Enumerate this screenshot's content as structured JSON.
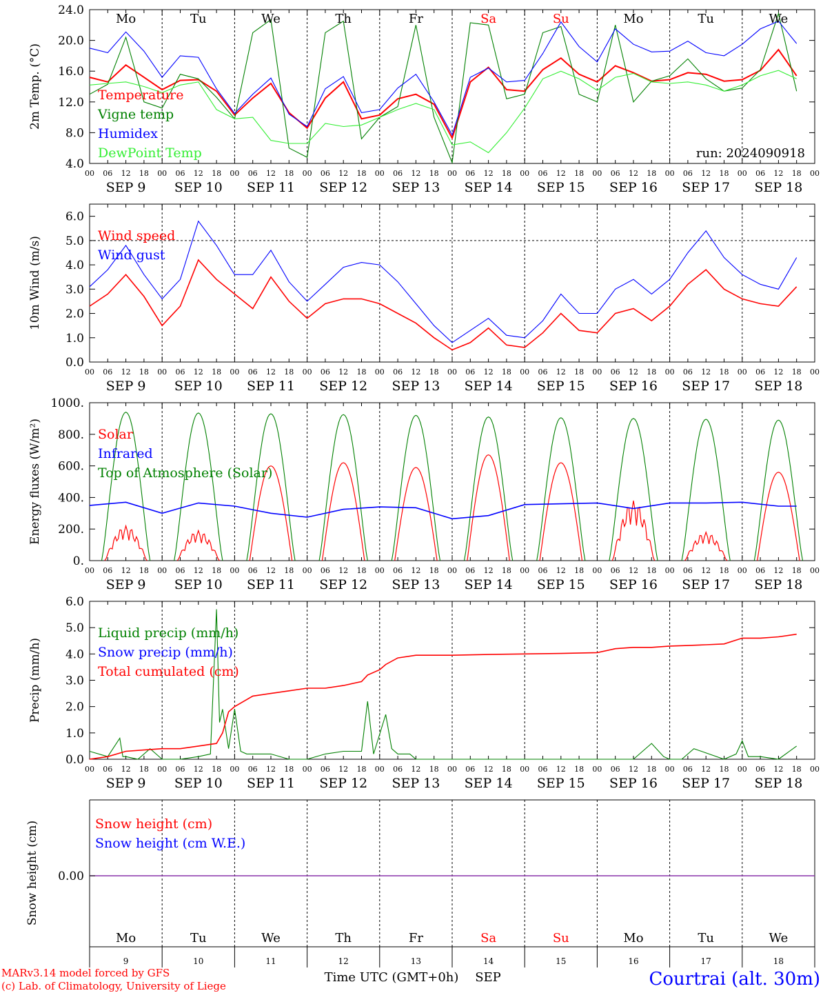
{
  "colors": {
    "red": "#ff0000",
    "green": "#008000",
    "blue": "#0000ff",
    "lightgreen": "#33ee33",
    "purple": "#8833aa",
    "axis": "#000000"
  },
  "hour_labels": [
    "00",
    "06",
    "12",
    "18"
  ],
  "date_labels": [
    "SEP  9",
    "SEP 10",
    "SEP 11",
    "SEP 12",
    "SEP 13",
    "SEP 14",
    "SEP 15",
    "SEP 16",
    "SEP 17",
    "SEP 18"
  ],
  "weekday_labels": [
    {
      "label": "Mo",
      "weekend": false
    },
    {
      "label": "Tu",
      "weekend": false
    },
    {
      "label": "We",
      "weekend": false
    },
    {
      "label": "Th",
      "weekend": false
    },
    {
      "label": "Fr",
      "weekend": false
    },
    {
      "label": "Sa",
      "weekend": true
    },
    {
      "label": "Su",
      "weekend": true
    },
    {
      "label": "Mo",
      "weekend": false
    },
    {
      "label": "Tu",
      "weekend": false
    },
    {
      "label": "We",
      "weekend": false
    }
  ],
  "day_numbers": [
    "9",
    "10",
    "11",
    "12",
    "13",
    "14",
    "15",
    "16",
    "17",
    "18"
  ],
  "run_label": "run: 2024090918",
  "footer": {
    "credit_line1": "MARv3.14 model forced by GFS",
    "credit_line2": "(c) Lab. of Climatology, University of Liege",
    "xlabel": "Time UTC (GMT+0h)",
    "month": "SEP",
    "station": "Courtrai (alt. 30m)"
  },
  "chart_data": [
    {
      "type": "line",
      "ylabel": "2m Temp. (°C)",
      "ylim": [
        4,
        24
      ],
      "yticks": [
        "4.0",
        "8.0",
        "12.0",
        "16.0",
        "20.0",
        "24.0"
      ],
      "x_unit": "hours since SEP 9 00 UTC",
      "series": [
        {
          "name": "Temperature",
          "color": "red",
          "x": [
            0,
            6,
            12,
            18,
            24,
            30,
            36,
            42,
            48,
            54,
            60,
            66,
            72,
            78,
            84,
            90,
            96,
            102,
            108,
            114,
            120,
            126,
            132,
            138,
            144,
            150,
            156,
            162,
            168,
            174,
            180,
            186,
            192,
            198,
            204,
            210,
            216,
            222,
            228,
            234
          ],
          "values": [
            15.2,
            14.6,
            16.8,
            15.2,
            13.6,
            14.8,
            14.9,
            13.4,
            10.3,
            12.5,
            14.4,
            10.6,
            8.6,
            12.5,
            14.6,
            9.8,
            10.3,
            12.4,
            13.0,
            11.7,
            7.3,
            14.6,
            16.5,
            13.6,
            13.4,
            16.2,
            17.7,
            15.6,
            14.6,
            16.7,
            15.8,
            14.7,
            14.9,
            15.8,
            15.6,
            14.7,
            14.9,
            16.1,
            18.8,
            15.4
          ]
        },
        {
          "name": "Vigne temp",
          "color": "green",
          "x": [
            0,
            6,
            12,
            18,
            24,
            30,
            36,
            42,
            48,
            54,
            60,
            66,
            72,
            78,
            84,
            90,
            96,
            102,
            108,
            114,
            120,
            126,
            132,
            138,
            144,
            150,
            156,
            162,
            168,
            174,
            180,
            186,
            192,
            198,
            204,
            210,
            216,
            222,
            228,
            234
          ],
          "values": [
            13.0,
            14.3,
            20.4,
            12.0,
            11.2,
            15.6,
            15.0,
            12.6,
            9.8,
            21.0,
            22.7,
            6.0,
            4.8,
            21.0,
            22.5,
            7.2,
            10.0,
            11.4,
            22.0,
            10.0,
            4.1,
            22.3,
            22.0,
            12.4,
            13.0,
            21.0,
            21.8,
            13.0,
            12.0,
            22.0,
            12.0,
            14.7,
            15.4,
            17.6,
            15.0,
            13.4,
            13.8,
            16.2,
            23.5,
            13.4
          ]
        },
        {
          "name": "Humidex",
          "color": "blue",
          "x": [
            0,
            6,
            12,
            18,
            24,
            30,
            36,
            42,
            48,
            54,
            60,
            66,
            72,
            78,
            84,
            90,
            96,
            102,
            108,
            114,
            120,
            126,
            132,
            138,
            144,
            150,
            156,
            162,
            168,
            174,
            180,
            186,
            192,
            198,
            204,
            210,
            216,
            222,
            228,
            234
          ],
          "values": [
            19.0,
            18.4,
            21.1,
            18.6,
            15.2,
            18.0,
            17.8,
            13.7,
            10.5,
            13.0,
            15.1,
            10.4,
            8.8,
            13.7,
            15.3,
            10.6,
            11.0,
            13.8,
            15.6,
            12.0,
            7.7,
            15.2,
            16.4,
            14.6,
            14.8,
            18.3,
            22.4,
            19.2,
            17.2,
            21.5,
            19.5,
            18.5,
            18.6,
            19.9,
            18.4,
            18.0,
            19.5,
            21.5,
            22.5,
            19.6
          ]
        },
        {
          "name": "DewPoint Temp",
          "color": "lightgreen",
          "x": [
            0,
            6,
            12,
            18,
            24,
            30,
            36,
            42,
            48,
            54,
            60,
            66,
            72,
            78,
            84,
            90,
            96,
            102,
            108,
            114,
            120,
            126,
            132,
            138,
            144,
            150,
            156,
            162,
            168,
            174,
            180,
            186,
            192,
            198,
            204,
            210,
            216,
            222,
            228,
            234
          ],
          "values": [
            14.2,
            14.4,
            14.6,
            14.0,
            13.2,
            14.2,
            14.6,
            11.0,
            9.8,
            10.0,
            7.0,
            6.6,
            6.6,
            9.2,
            8.8,
            9.0,
            10.0,
            11.0,
            11.8,
            11.0,
            6.4,
            6.8,
            5.4,
            8.0,
            11.2,
            15.0,
            16.0,
            15.0,
            13.5,
            15.2,
            15.7,
            14.6,
            14.4,
            14.6,
            14.2,
            13.4,
            14.2,
            15.4,
            16.1,
            15.0
          ]
        }
      ],
      "legend": [
        "Temperature",
        "Vigne temp",
        "Humidex",
        "DewPoint Temp"
      ]
    },
    {
      "type": "line",
      "ylabel": "10m Wind (m/s)",
      "ylim": [
        0,
        6.5
      ],
      "yticks": [
        "0.0",
        "1.0",
        "2.0",
        "3.0",
        "4.0",
        "5.0",
        "6.0"
      ],
      "hline": 5.0,
      "series": [
        {
          "name": "Wind speed",
          "color": "red",
          "x": [
            0,
            6,
            12,
            18,
            24,
            30,
            36,
            42,
            48,
            54,
            60,
            66,
            72,
            78,
            84,
            90,
            96,
            102,
            108,
            114,
            120,
            126,
            132,
            138,
            144,
            150,
            156,
            162,
            168,
            174,
            180,
            186,
            192,
            198,
            204,
            210,
            216,
            222,
            228,
            234
          ],
          "values": [
            2.3,
            2.8,
            3.6,
            2.7,
            1.5,
            2.3,
            4.2,
            3.4,
            2.8,
            2.2,
            3.5,
            2.5,
            1.8,
            2.4,
            2.6,
            2.6,
            2.4,
            2.0,
            1.6,
            1.0,
            0.5,
            0.8,
            1.4,
            0.7,
            0.6,
            1.2,
            2.0,
            1.3,
            1.2,
            2.0,
            2.2,
            1.7,
            2.3,
            3.2,
            3.8,
            3.0,
            2.6,
            2.4,
            2.3,
            3.1
          ]
        },
        {
          "name": "Wind gust",
          "color": "blue",
          "x": [
            0,
            6,
            12,
            18,
            24,
            30,
            36,
            42,
            48,
            54,
            60,
            66,
            72,
            78,
            84,
            90,
            96,
            102,
            108,
            114,
            120,
            126,
            132,
            138,
            144,
            150,
            156,
            162,
            168,
            174,
            180,
            186,
            192,
            198,
            204,
            210,
            216,
            222,
            228,
            234
          ],
          "values": [
            3.1,
            3.8,
            4.8,
            3.6,
            2.6,
            3.4,
            5.8,
            4.8,
            3.6,
            3.6,
            4.6,
            3.3,
            2.5,
            3.2,
            3.9,
            4.1,
            4.0,
            3.3,
            2.4,
            1.5,
            0.8,
            1.3,
            1.8,
            1.1,
            1.0,
            1.7,
            2.8,
            2.0,
            2.0,
            3.0,
            3.4,
            2.8,
            3.4,
            4.5,
            5.4,
            4.3,
            3.6,
            3.2,
            3.0,
            4.3
          ]
        }
      ],
      "legend": [
        "Wind speed",
        "Wind gust"
      ]
    },
    {
      "type": "line",
      "ylabel": "Energy fluxes (W/m²)",
      "ylim": [
        0,
        1000
      ],
      "yticks": [
        "0.",
        "200.",
        "400.",
        "600.",
        "800.",
        "1000."
      ],
      "solar_peaks": [
        220,
        190,
        600,
        620,
        590,
        670,
        620,
        380,
        180,
        560
      ],
      "toa_peaks": [
        940,
        935,
        930,
        925,
        920,
        910,
        905,
        900,
        895,
        890
      ],
      "infrared": {
        "x": [
          0,
          12,
          24,
          36,
          48,
          60,
          72,
          84,
          96,
          108,
          120,
          132,
          144,
          156,
          168,
          180,
          192,
          204,
          216,
          228,
          234
        ],
        "values": [
          350,
          370,
          300,
          365,
          345,
          300,
          275,
          325,
          340,
          335,
          265,
          285,
          355,
          360,
          365,
          330,
          365,
          365,
          370,
          345,
          345
        ]
      },
      "legend": [
        "Solar",
        "Infrared",
        "Top of Atmosphere (Solar)"
      ]
    },
    {
      "type": "line",
      "ylabel": "Precip (mm/h)",
      "ylim": [
        0,
        6
      ],
      "yticks": [
        "0.0",
        "1.0",
        "2.0",
        "3.0",
        "4.0",
        "5.0",
        "6.0"
      ],
      "liquid": {
        "x": [
          0,
          6,
          10,
          11,
          12,
          16,
          20,
          24,
          30,
          36,
          40,
          42,
          43,
          44,
          46,
          48,
          50,
          52,
          54,
          60,
          66,
          72,
          78,
          84,
          90,
          92,
          94,
          98,
          100,
          102,
          106,
          108,
          114,
          120,
          150,
          168,
          180,
          186,
          190,
          192,
          196,
          200,
          210,
          214,
          216,
          218,
          222,
          228,
          234
        ],
        "values": [
          0.3,
          0.1,
          0.8,
          0.1,
          0.1,
          0.0,
          0.4,
          0.0,
          0.0,
          0.1,
          0.2,
          5.7,
          1.4,
          1.9,
          0.4,
          1.9,
          0.3,
          0.2,
          0.2,
          0.2,
          0.0,
          0.0,
          0.2,
          0.3,
          0.3,
          2.2,
          0.2,
          1.7,
          0.4,
          0.2,
          0.2,
          0.0,
          0.0,
          0.0,
          0.0,
          0.0,
          0.0,
          0.6,
          0.1,
          0.0,
          0.0,
          0.4,
          0.0,
          0.2,
          0.7,
          0.1,
          0.1,
          0.0,
          0.5
        ]
      },
      "cumulated": {
        "x": [
          0,
          6,
          12,
          18,
          24,
          30,
          36,
          42,
          44,
          46,
          48,
          54,
          60,
          66,
          72,
          78,
          84,
          90,
          92,
          96,
          98,
          102,
          108,
          114,
          120,
          132,
          144,
          156,
          168,
          174,
          180,
          186,
          192,
          198,
          204,
          210,
          216,
          222,
          228,
          234
        ],
        "values": [
          0.0,
          0.1,
          0.3,
          0.35,
          0.4,
          0.4,
          0.5,
          0.6,
          1.0,
          1.8,
          2.0,
          2.4,
          2.5,
          2.6,
          2.7,
          2.7,
          2.8,
          2.95,
          3.2,
          3.4,
          3.6,
          3.85,
          3.95,
          3.95,
          3.95,
          3.98,
          4.0,
          4.02,
          4.05,
          4.2,
          4.25,
          4.25,
          4.3,
          4.32,
          4.35,
          4.38,
          4.6,
          4.6,
          4.65,
          4.75
        ]
      },
      "legend": [
        "Liquid precip (mm/h)",
        "Snow precip (mm/h)",
        "Total cumulated (cm)"
      ]
    },
    {
      "type": "line",
      "ylabel": "Snow height (cm)",
      "ytick": "0.00",
      "values_constant": 0.0,
      "legend": [
        "Snow height (cm)",
        "Snow height (cm W.E.)"
      ]
    }
  ]
}
